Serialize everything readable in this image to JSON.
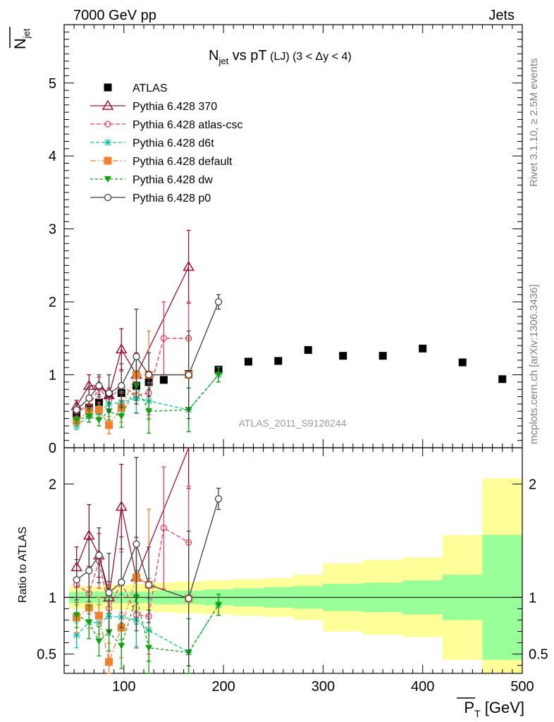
{
  "header": {
    "left": "7000 GeV pp",
    "right": "Jets"
  },
  "side": {
    "rivet": "Rivet 3.1.10, ≥ 2.5M events",
    "mcplots": "mcplots.cern.ch [arXiv:1306.3436]"
  },
  "colors": {
    "atlas": "#000000",
    "p370": "#a01030",
    "atlascsc": "#f03c64",
    "d6t": "#10c0a0",
    "default": "#f08030",
    "dw": "#10a010",
    "p0": "#404040",
    "band_inner": "#99ff99",
    "band_outer": "#ffff99"
  },
  "chart_data": {
    "type": "scatter",
    "title": "N_jet vs pT (LJ) (3 < Δy < 4)",
    "title_parts": {
      "main": "N",
      "sub": "jet",
      "rest": " vs pT",
      "small": " (LJ) (3 < Δy < 4)"
    },
    "ylabel_main": {
      "main": "N",
      "sub": "jet"
    },
    "ylabel_ratio": "Ratio to ATLAS",
    "xlabel": {
      "main": "P",
      "sub": "T",
      "unit": " [GeV]"
    },
    "watermark": "ATLAS_2011_S9126244",
    "xlim": [
      40,
      500
    ],
    "ylim_main": [
      0,
      5.8
    ],
    "ylim_ratio": [
      0.33,
      2.32
    ],
    "x_ticks": [
      100,
      200,
      300,
      400,
      500
    ],
    "x_tick_labels": [
      "100",
      "200",
      "300",
      "400",
      "500"
    ],
    "y_ticks_main": [
      0,
      1,
      2,
      3,
      4,
      5
    ],
    "y_tick_labels_main": [
      "0",
      "1",
      "2",
      "3",
      "4",
      "5"
    ],
    "y_ticks_ratio": [
      0.5,
      1,
      2
    ],
    "y_tick_labels_ratio": [
      "0.5",
      "1",
      "2"
    ],
    "legend_labels": [
      "ATLAS",
      "Pythia 6.428 370",
      "Pythia 6.428 atlas-csc",
      "Pythia 6.428 d6t",
      "Pythia 6.428 default",
      "Pythia 6.428 dw",
      "Pythia 6.428 p0"
    ],
    "bins": [
      [
        45,
        60
      ],
      [
        60,
        70
      ],
      [
        70,
        80
      ],
      [
        80,
        90
      ],
      [
        90,
        105
      ],
      [
        105,
        120
      ],
      [
        120,
        130
      ],
      [
        130,
        150
      ],
      [
        150,
        180
      ],
      [
        180,
        210
      ],
      [
        210,
        240
      ],
      [
        240,
        270
      ],
      [
        270,
        300
      ],
      [
        300,
        340
      ],
      [
        340,
        380
      ],
      [
        380,
        420
      ],
      [
        420,
        460
      ],
      [
        460,
        500
      ]
    ],
    "atlas": {
      "x": [
        52.5,
        65,
        75,
        85,
        97.5,
        112.5,
        125,
        140,
        165,
        195,
        225,
        255,
        285,
        320,
        360,
        400,
        440,
        480
      ],
      "y": [
        0.45,
        0.55,
        0.62,
        0.72,
        0.75,
        0.85,
        0.9,
        0.93,
        1.01,
        1.07,
        1.18,
        1.19,
        1.34,
        1.26,
        1.26,
        1.36,
        1.17,
        0.94
      ]
    },
    "band": {
      "inner": [
        0.05,
        0.05,
        0.05,
        0.05,
        0.05,
        0.05,
        0.05,
        0.06,
        0.06,
        0.07,
        0.08,
        0.09,
        0.1,
        0.12,
        0.13,
        0.15,
        0.2,
        0.55
      ],
      "outer": [
        0.1,
        0.1,
        0.1,
        0.11,
        0.11,
        0.12,
        0.12,
        0.13,
        0.14,
        0.15,
        0.16,
        0.17,
        0.2,
        0.3,
        0.33,
        0.35,
        0.55,
        1.05
      ]
    },
    "series": [
      {
        "name": "Pythia 6.428 370",
        "key": "p370",
        "marker": "triangle",
        "dash": "",
        "x": [
          52.5,
          65,
          75,
          85,
          97.5,
          112.5,
          165
        ],
        "y": [
          0.57,
          0.85,
          0.85,
          0.72,
          1.35,
          1.0,
          2.48
        ],
        "err": [
          0.08,
          0.15,
          0.12,
          0.1,
          0.28,
          0.3,
          0.5
        ]
      },
      {
        "name": "Pythia 6.428 atlas-csc",
        "key": "atlascsc",
        "marker": "circle",
        "dash": "6,3",
        "x": [
          52.5,
          65,
          75,
          85,
          97.5,
          112.5,
          125,
          140,
          165
        ],
        "y": [
          0.5,
          0.57,
          0.82,
          0.65,
          0.85,
          0.72,
          0.75,
          1.5,
          1.5
        ],
        "err": [
          0.08,
          0.1,
          0.15,
          0.15,
          0.2,
          0.25,
          0.3,
          0.5,
          0.5
        ]
      },
      {
        "name": "Pythia 6.428 d6t",
        "key": "d6t",
        "marker": "star",
        "dash": "5,3",
        "x": [
          52.5,
          65,
          75,
          85,
          97.5,
          112.5,
          125,
          165,
          195
        ],
        "y": [
          0.3,
          0.43,
          0.48,
          0.6,
          0.62,
          0.68,
          0.64,
          0.52,
          1.0
        ],
        "err": [
          0.05,
          0.08,
          0.1,
          0.12,
          0.15,
          0.2,
          0.25,
          0.3,
          0.1
        ]
      },
      {
        "name": "Pythia 6.428 default",
        "key": "default",
        "marker": "square",
        "dash": "8,3,2,3",
        "x": [
          52.5,
          65,
          75,
          85,
          97.5,
          112.5,
          125,
          165
        ],
        "y": [
          0.37,
          0.5,
          0.52,
          0.31,
          0.55,
          1.0,
          1.0,
          1.0
        ],
        "err": [
          0.06,
          0.1,
          0.1,
          0.12,
          0.2,
          0.25,
          0.6,
          0.5
        ]
      },
      {
        "name": "Pythia 6.428 dw",
        "key": "dw",
        "marker": "invtriangle",
        "dash": "4,3",
        "x": [
          52.5,
          65,
          75,
          85,
          97.5,
          112.5,
          125,
          165,
          195
        ],
        "y": [
          0.38,
          0.43,
          0.38,
          0.5,
          0.43,
          0.85,
          0.5,
          0.52,
          1.0
        ],
        "err": [
          0.05,
          0.08,
          0.08,
          0.12,
          0.15,
          0.2,
          0.3,
          0.3,
          0.1
        ]
      },
      {
        "name": "Pythia 6.428 p0",
        "key": "p0",
        "marker": "ocircle",
        "dash": "",
        "x": [
          52.5,
          65,
          75,
          85,
          97.5,
          112.5,
          125,
          165,
          195
        ],
        "y": [
          0.52,
          0.68,
          0.85,
          0.75,
          0.85,
          1.25,
          1.0,
          1.0,
          2.0
        ],
        "err": [
          0.08,
          0.15,
          0.15,
          0.25,
          0.3,
          0.65,
          0.3,
          0.6,
          0.1
        ]
      }
    ]
  }
}
